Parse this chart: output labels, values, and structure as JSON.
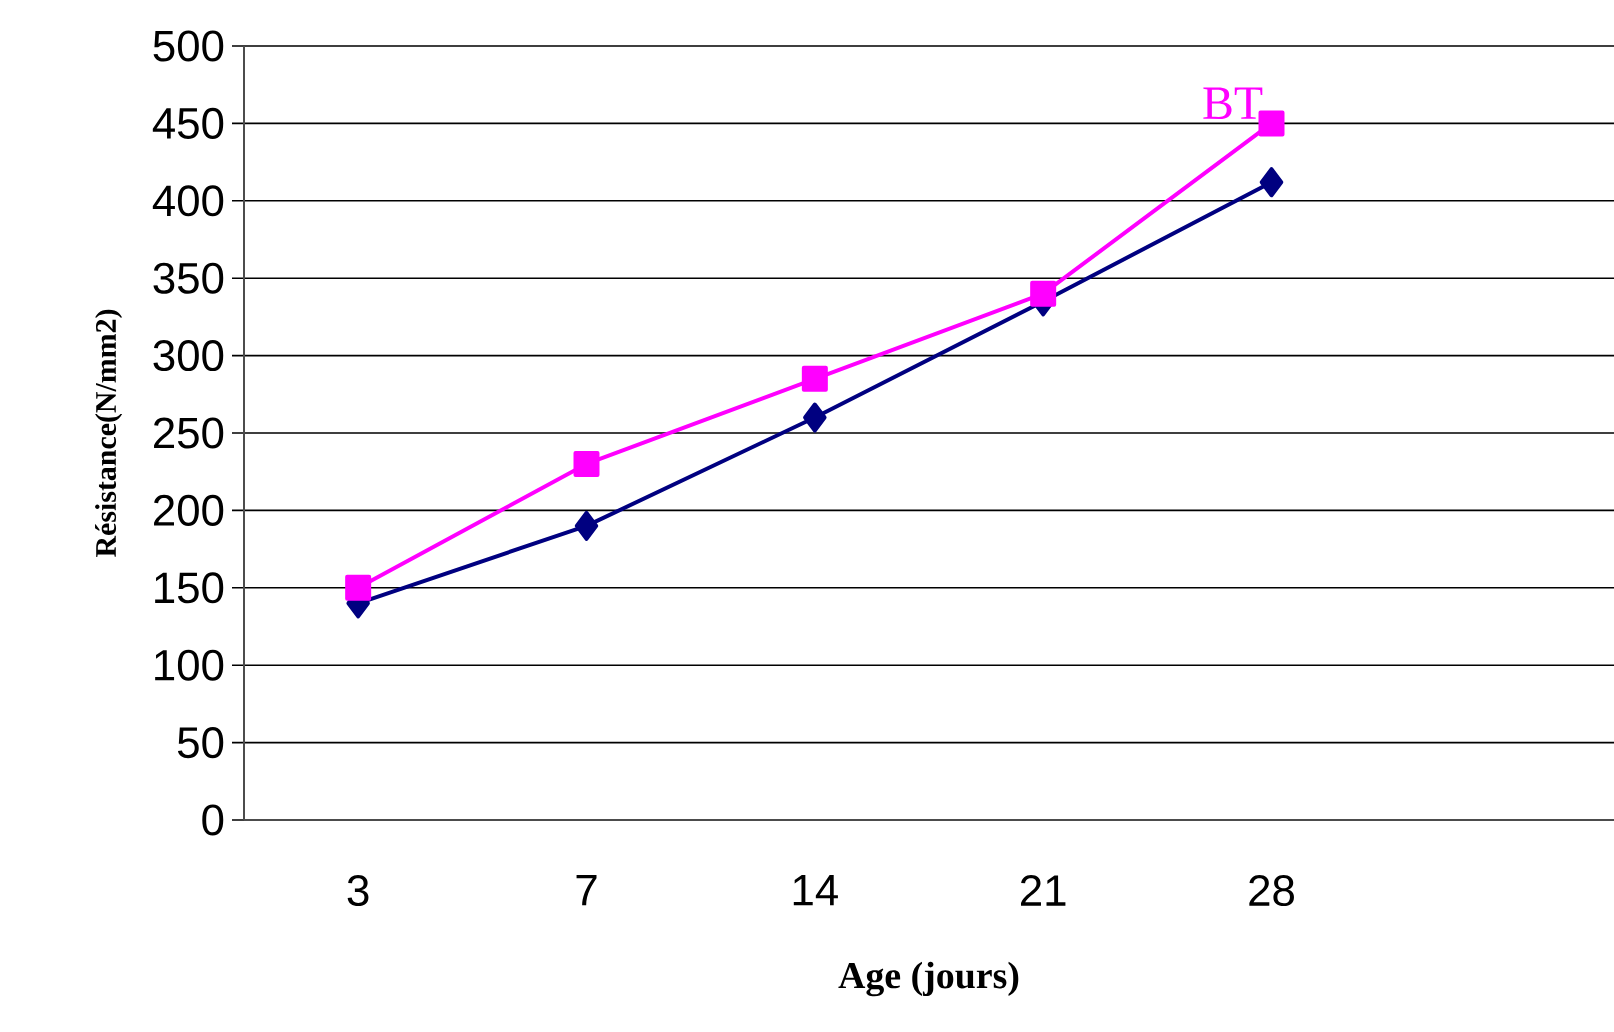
{
  "chart_data": {
    "type": "line",
    "xlabel": "Age (jours)",
    "ylabel": "Résistance(N/mm2)",
    "categories": [
      "3",
      "7",
      "14",
      "21",
      "28",
      null
    ],
    "series": [
      {
        "color": "#000080",
        "marker": "diamond",
        "values": [
          140,
          190,
          260,
          335,
          412,
          null
        ]
      },
      {
        "name": "BT",
        "color": "#ff00ff",
        "marker": "square",
        "values": [
          150,
          230,
          285,
          340,
          450,
          null
        ]
      }
    ],
    "ylim": [
      0,
      500
    ],
    "yticks": [
      0,
      50,
      100,
      150,
      200,
      250,
      300,
      350,
      400,
      450,
      500
    ],
    "grid": "y"
  }
}
